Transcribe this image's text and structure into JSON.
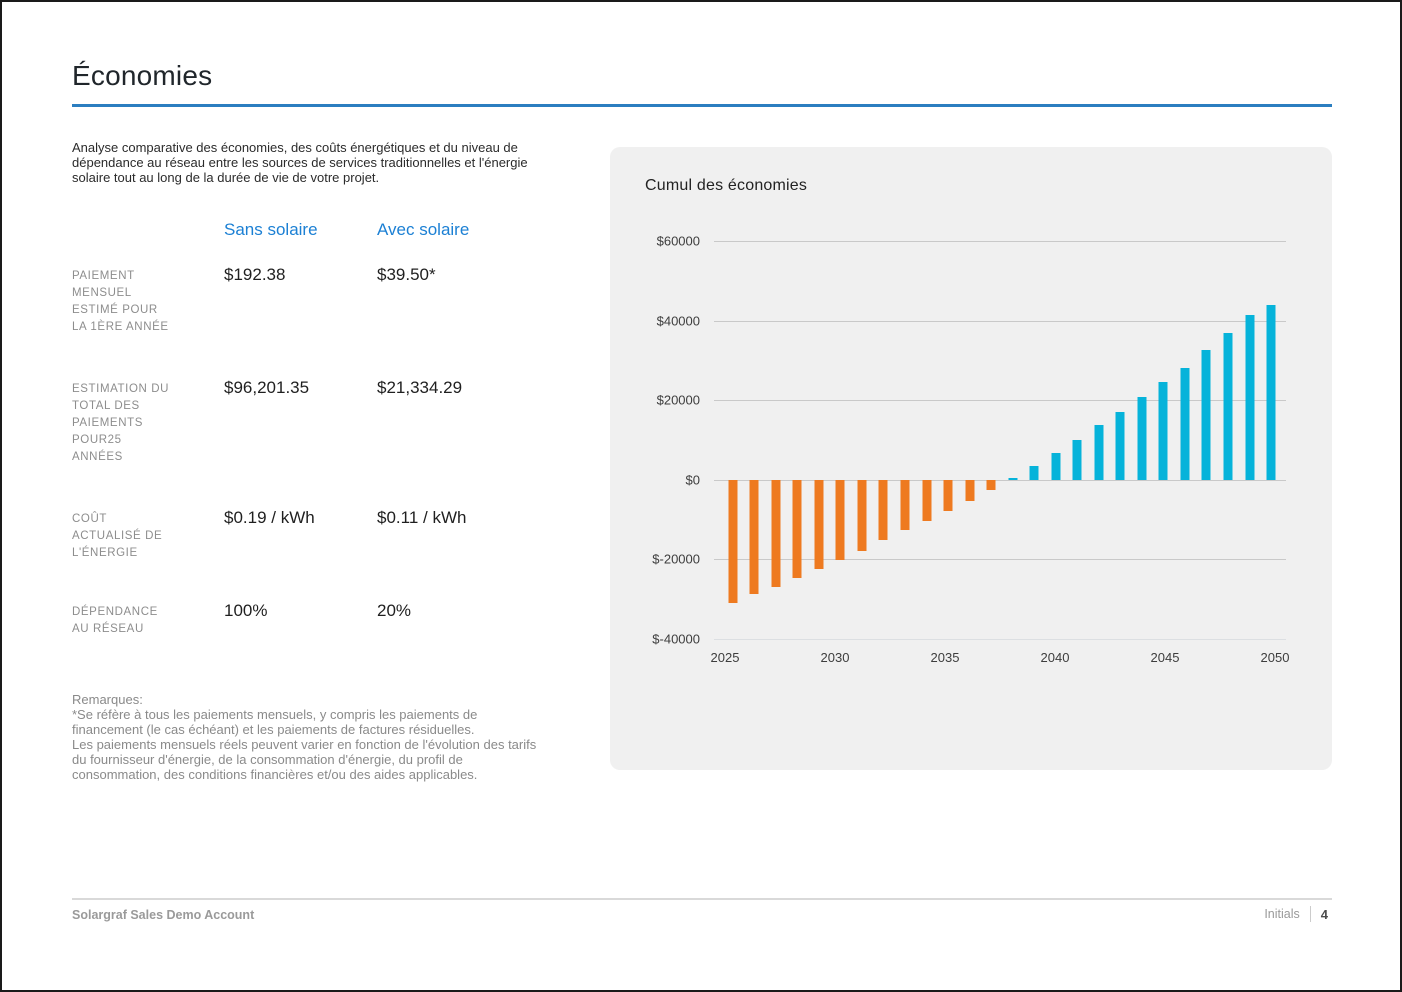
{
  "page": {
    "title": "Économies",
    "intro": "Analyse comparative des économies, des coûts énergétiques et du niveau de dépendance au réseau entre les sources de services traditionnelles et l'énergie solaire tout au long de la durée de vie de votre projet.",
    "accent_color": "#2b7ec0"
  },
  "comparison_table": {
    "columns": [
      "Sans solaire",
      "Avec solaire"
    ],
    "rows": [
      {
        "label": "PAIEMENT\nMENSUEL\nESTIMÉ POUR\nLA 1ÈRE ANNÉE",
        "sans": "$192.38",
        "avec": "$39.50*"
      },
      {
        "label": "ESTIMATION DU\nTOTAL DES\nPAIEMENTS\nPOUR25\nANNÉES",
        "sans": "$96,201.35",
        "avec": "$21,334.29"
      },
      {
        "label": "COÛT\nACTUALISÉ DE\nL'ÉNERGIE",
        "sans": "$0.19 / kWh",
        "avec": "$0.11 / kWh"
      },
      {
        "label": "DÉPENDANCE\nAU RÉSEAU",
        "sans": "100%",
        "avec": "20%"
      }
    ]
  },
  "notes": {
    "heading": "Remarques:",
    "note1": "*Se réfère à tous les paiements mensuels, y compris les paiements de financement (le cas échéant) et les paiements de factures résiduelles.",
    "note2": "Les paiements mensuels réels peuvent varier en fonction de l'évolution des tarifs du fournisseur d'énergie, de la consommation d'énergie, du profil de consommation, des conditions financières et/ou des aides applicables."
  },
  "chart_data": {
    "type": "bar",
    "title": "Cumul des économies",
    "categories": [
      "2025",
      "2026",
      "2027",
      "2028",
      "2029",
      "2030",
      "2031",
      "2032",
      "2033",
      "2034",
      "2035",
      "2036",
      "2037",
      "2038",
      "2039",
      "2040",
      "2041",
      "2042",
      "2043",
      "2044",
      "2045",
      "2046",
      "2047",
      "2048",
      "2049",
      "2050"
    ],
    "values": [
      -31000,
      -28800,
      -26900,
      -24700,
      -22500,
      -20200,
      -17800,
      -15100,
      -12700,
      -10400,
      -7900,
      -5300,
      -2500,
      500,
      3400,
      6800,
      10100,
      13700,
      17000,
      20900,
      24600,
      28100,
      32600,
      36900,
      41300,
      43800
    ],
    "ylim": [
      -40000,
      60000
    ],
    "ytick_labels": [
      "$60000",
      "$40000",
      "$20000",
      "$0",
      "$-20000",
      "$-40000"
    ],
    "xtick_labels": [
      "2025",
      "2030",
      "2035",
      "2040",
      "2045",
      "2050"
    ],
    "xlabel": "",
    "ylabel": "",
    "grid": true,
    "legend_position": "none",
    "positive_color": "#06b3da",
    "negative_color": "#ee7a20"
  },
  "footer": {
    "account": "Solargraf Sales Demo Account",
    "initials_label": "Initials",
    "page_number": "4"
  }
}
